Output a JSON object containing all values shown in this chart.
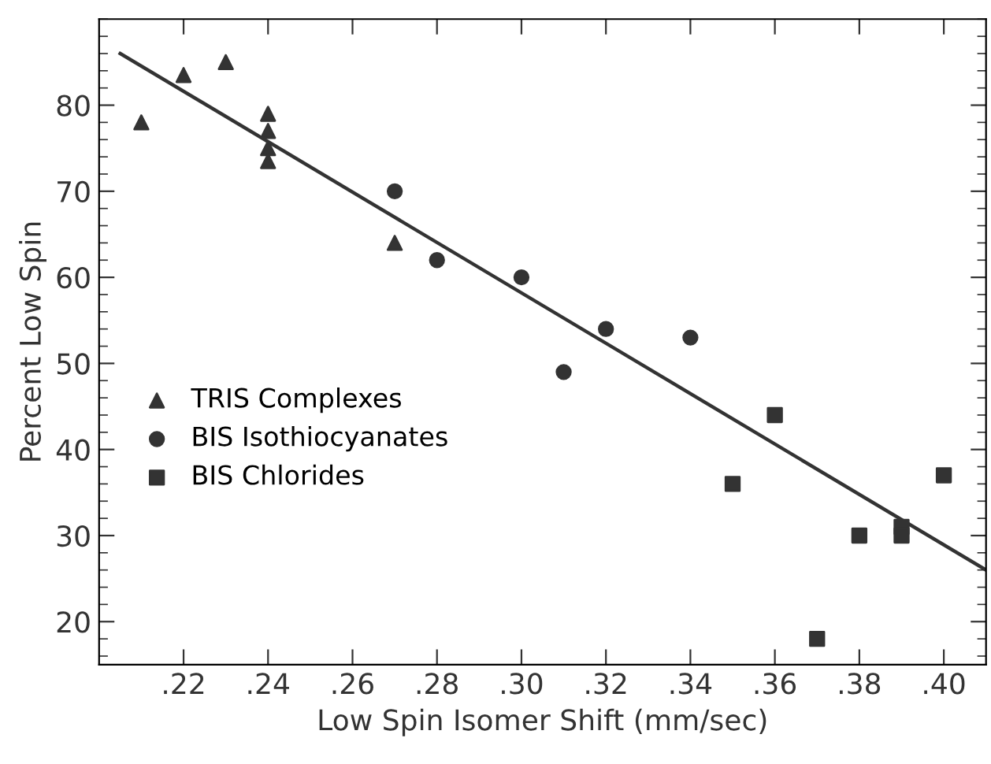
{
  "chart_data": {
    "type": "scatter",
    "xlabel": "Low Spin Isomer Shift (mm/sec)",
    "ylabel": "Percent Low Spin",
    "xlim": [
      0.2,
      0.41
    ],
    "ylim": [
      15,
      90
    ],
    "xticks": [
      {
        "value": 0.22,
        "label": ".22"
      },
      {
        "value": 0.24,
        "label": ".24"
      },
      {
        "value": 0.26,
        "label": ".26"
      },
      {
        "value": 0.28,
        "label": ".28"
      },
      {
        "value": 0.3,
        "label": ".30"
      },
      {
        "value": 0.32,
        "label": ".32"
      },
      {
        "value": 0.34,
        "label": ".34"
      },
      {
        "value": 0.36,
        "label": ".36"
      },
      {
        "value": 0.38,
        "label": ".38"
      },
      {
        "value": 0.4,
        "label": ".40"
      }
    ],
    "yticks": [
      20,
      30,
      40,
      50,
      60,
      70,
      80
    ],
    "grid": false,
    "legend": "center left",
    "series": [
      {
        "name": "TRIS Complexes",
        "color": "#333333",
        "marker": "triangle",
        "x": [
          0.21,
          0.22,
          0.23,
          0.24,
          0.24,
          0.24,
          0.24,
          0.27
        ],
        "values": [
          78,
          83.5,
          85,
          79,
          77,
          75,
          73.5,
          64
        ]
      },
      {
        "name": "BIS Isothiocyanates",
        "color": "#333333",
        "marker": "circle",
        "x": [
          0.27,
          0.28,
          0.3,
          0.31,
          0.32,
          0.34
        ],
        "values": [
          70,
          62,
          60,
          49,
          54,
          53
        ]
      },
      {
        "name": "BIS Chlorides",
        "color": "#333333",
        "marker": "square",
        "x": [
          0.35,
          0.36,
          0.37,
          0.38,
          0.39,
          0.39,
          0.4
        ],
        "values": [
          36,
          44,
          18,
          30,
          31,
          30,
          37
        ]
      },
      {
        "type": "line",
        "color": "#333333",
        "marker": "none",
        "line_style": "solid",
        "x": [
          0.205,
          0.41
        ],
        "values": [
          86,
          26
        ]
      }
    ]
  }
}
